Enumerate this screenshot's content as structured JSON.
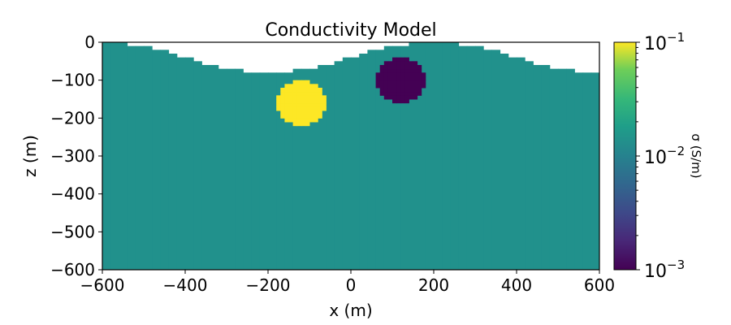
{
  "chart_data": {
    "type": "heatmap",
    "title": "Conductivity Model",
    "xlabel": "x (m)",
    "ylabel": "z (m)",
    "xlim": [
      -600,
      600
    ],
    "ylim": [
      -600,
      0
    ],
    "xticks": [
      "−600",
      "−400",
      "−200",
      "0",
      "200",
      "400",
      "600"
    ],
    "xtick_values": [
      -600,
      -400,
      -200,
      0,
      200,
      400,
      600
    ],
    "yticks": [
      "0",
      "−100",
      "−200",
      "−300",
      "−400",
      "−500",
      "−600"
    ],
    "ytick_values": [
      0,
      -100,
      -200,
      -300,
      -400,
      -500,
      -600
    ],
    "background_conductivity": 0.01,
    "topography": {
      "description_points_x": [
        -600,
        -400,
        -200,
        0,
        200,
        400,
        600
      ],
      "z": [
        0,
        -20,
        -80,
        -40,
        0,
        -40,
        -80
      ]
    },
    "anomalies": [
      {
        "name": "conductive",
        "center_x": -120,
        "center_z": -160,
        "radius": 60,
        "conductivity": 0.1
      },
      {
        "name": "resistive",
        "center_x": 120,
        "center_z": -100,
        "radius": 60,
        "conductivity": 0.001
      }
    ],
    "colorbar": {
      "label": "σ (S/m)",
      "scale": "log",
      "colormap": "viridis",
      "range": [
        0.001,
        0.1
      ],
      "ticks": [
        {
          "base": "10",
          "exp": "−1",
          "value": 0.1
        },
        {
          "base": "10",
          "exp": "−2",
          "value": 0.01
        },
        {
          "base": "10",
          "exp": "−3",
          "value": 0.001
        }
      ]
    },
    "colors": {
      "high": "#fde725",
      "mid": "#21918c",
      "low": "#440154"
    }
  }
}
